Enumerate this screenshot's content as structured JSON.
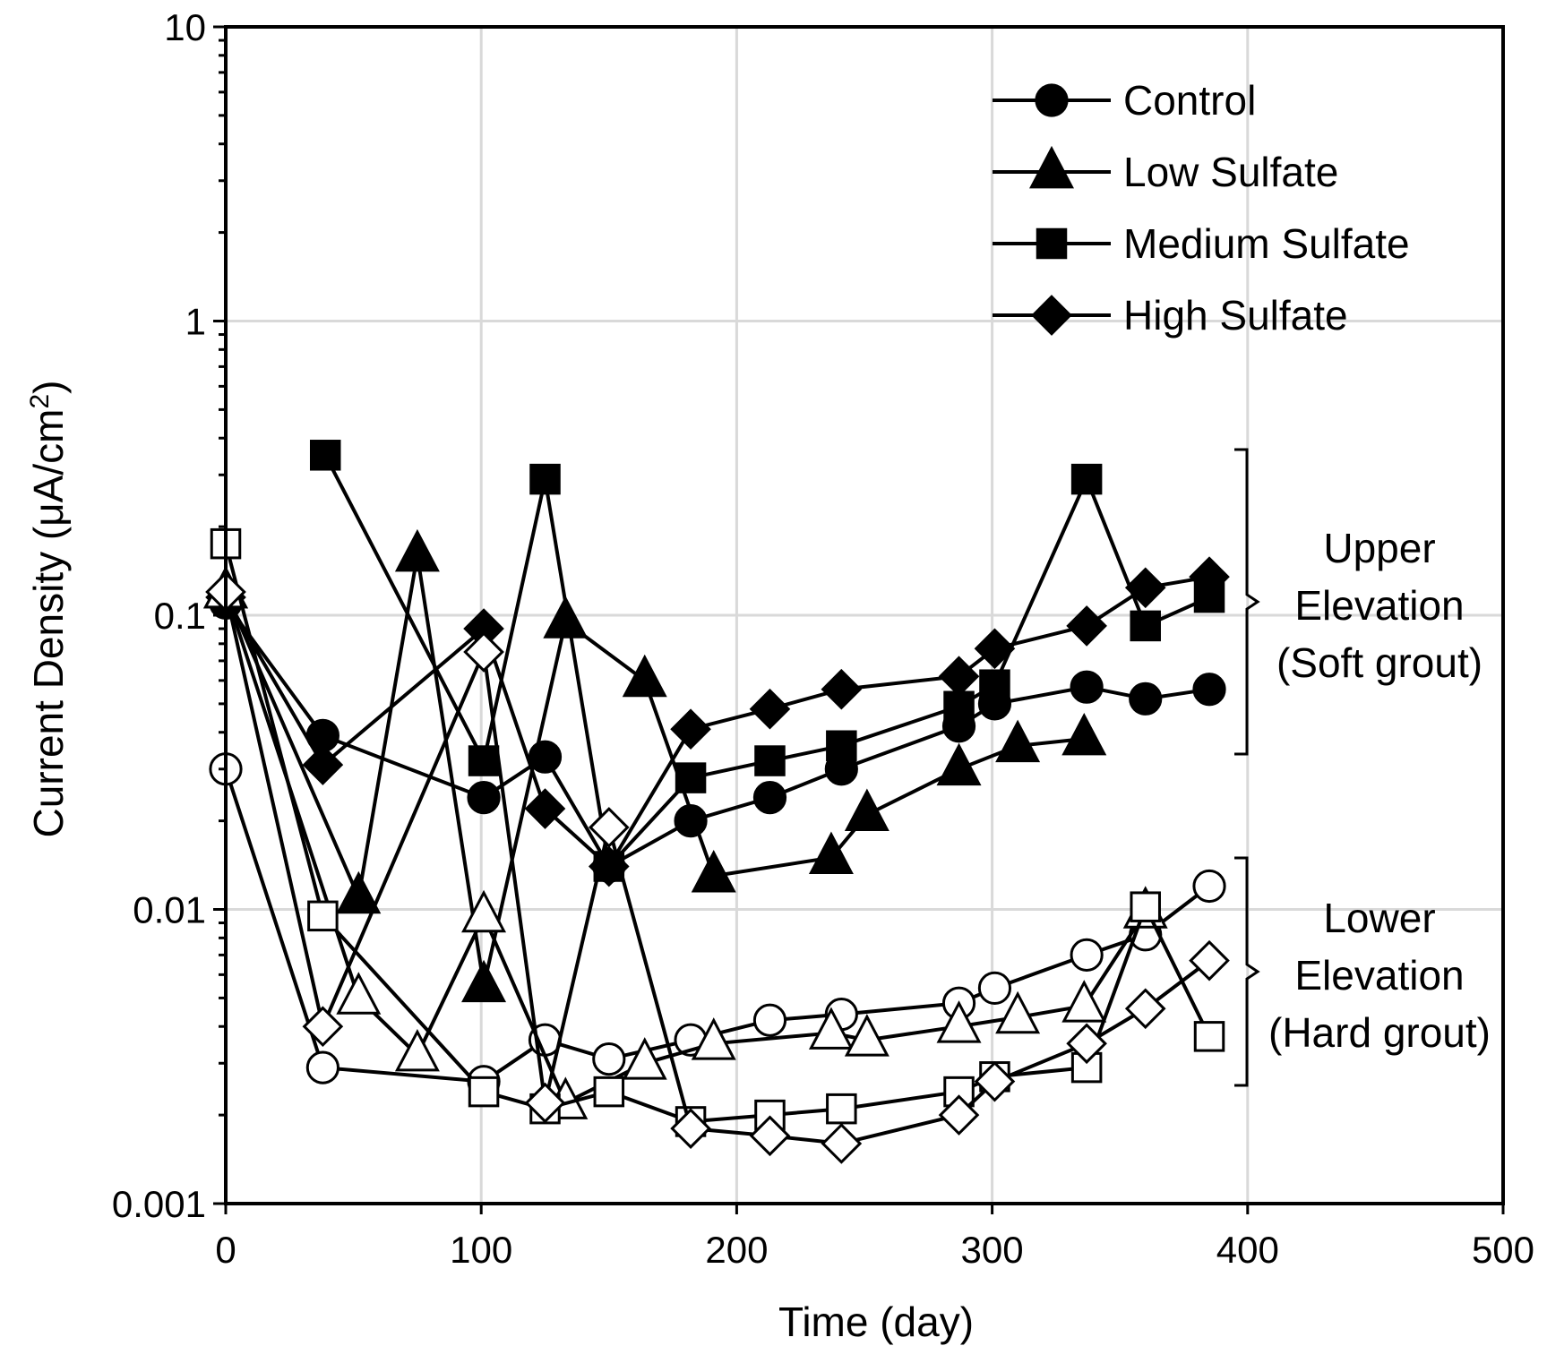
{
  "chart_data": {
    "type": "line",
    "title": "",
    "xlabel": "Time (day)",
    "ylabel": "Current Density (μA/cm²)",
    "ylabel_base": "Current Density (μA/cm",
    "ylabel_sup": "2",
    "ylabel_close": ")",
    "xlim": [
      0,
      500
    ],
    "ylim": [
      0.001,
      10
    ],
    "yscale": "log",
    "grid": true,
    "legend_position": "top-right",
    "x_ticks": [
      "0",
      "100",
      "200",
      "300",
      "400",
      "500"
    ],
    "y_ticks": [
      "0.001",
      "0.01",
      "0.1",
      "1",
      "10"
    ],
    "legend": [
      {
        "label": "Control",
        "marker": "circle"
      },
      {
        "label": "Low Sulfate",
        "marker": "triangle"
      },
      {
        "label": "Medium Sulfate",
        "marker": "square"
      },
      {
        "label": "High Sulfate",
        "marker": "diamond"
      }
    ],
    "annotations": [
      {
        "group": "upper",
        "lines": [
          "Upper",
          "Elevation",
          "(Soft grout)"
        ]
      },
      {
        "group": "lower",
        "lines": [
          "Lower",
          "Elevation",
          "(Hard grout)"
        ]
      }
    ],
    "series": [
      {
        "name": "Control - Upper Elevation (Soft grout)",
        "marker": "circle",
        "filled": true,
        "x": [
          0,
          38,
          101,
          125,
          150,
          182,
          213,
          241,
          287,
          301,
          337,
          360,
          385
        ],
        "y": [
          0.11,
          0.039,
          0.024,
          0.033,
          0.014,
          0.02,
          0.024,
          0.03,
          0.042,
          0.05,
          0.057,
          0.052,
          0.056
        ]
      },
      {
        "name": "Low Sulfate - Upper Elevation (Soft grout)",
        "marker": "triangle",
        "filled": true,
        "x": [
          0,
          52,
          75,
          101,
          133,
          164,
          191,
          237,
          251,
          287,
          310,
          336
        ],
        "y": [
          0.12,
          0.011,
          0.16,
          0.0055,
          0.095,
          0.06,
          0.013,
          0.015,
          0.021,
          0.03,
          0.036,
          0.038
        ]
      },
      {
        "name": "Medium Sulfate - Upper Elevation (Soft grout)",
        "marker": "square",
        "filled": true,
        "x": [
          39,
          101,
          125,
          150,
          182,
          213,
          241,
          287,
          301,
          337,
          360,
          385
        ],
        "y": [
          0.35,
          0.032,
          0.29,
          0.014,
          0.028,
          0.032,
          0.036,
          0.049,
          0.058,
          0.29,
          0.092,
          0.115
        ]
      },
      {
        "name": "High Sulfate - Upper Elevation (Soft grout)",
        "marker": "diamond",
        "filled": true,
        "x": [
          0,
          38,
          101,
          125,
          150,
          182,
          213,
          241,
          287,
          301,
          337,
          360,
          385
        ],
        "y": [
          0.115,
          0.031,
          0.09,
          0.022,
          0.014,
          0.041,
          0.048,
          0.056,
          0.062,
          0.077,
          0.092,
          0.124,
          0.135
        ]
      },
      {
        "name": "Control - Lower Elevation (Hard grout)",
        "marker": "circle",
        "filled": false,
        "x": [
          0,
          38,
          101,
          125,
          150,
          182,
          213,
          241,
          287,
          301,
          337,
          360,
          385
        ],
        "y": [
          0.03,
          0.0029,
          0.0026,
          0.0036,
          0.0031,
          0.0036,
          0.0042,
          0.0044,
          0.0048,
          0.0054,
          0.007,
          0.0082,
          0.012
        ]
      },
      {
        "name": "Low Sulfate - Lower Elevation (Hard grout)",
        "marker": "triangle",
        "filled": false,
        "x": [
          0,
          52,
          75,
          101,
          133,
          164,
          191,
          237,
          251,
          287,
          310,
          336,
          360
        ],
        "y": [
          0.12,
          0.005,
          0.0032,
          0.0095,
          0.0022,
          0.003,
          0.0035,
          0.0038,
          0.0036,
          0.004,
          0.0043,
          0.0047,
          0.0098
        ]
      },
      {
        "name": "Medium Sulfate - Lower Elevation (Hard grout)",
        "marker": "square",
        "filled": false,
        "x": [
          0,
          38,
          101,
          125,
          150,
          182,
          213,
          241,
          287,
          301,
          337,
          360,
          385
        ],
        "y": [
          0.175,
          0.0095,
          0.0024,
          0.0021,
          0.0024,
          0.0019,
          0.002,
          0.0021,
          0.0024,
          0.0027,
          0.0029,
          0.0102,
          0.0037
        ]
      },
      {
        "name": "High Sulfate - Lower Elevation (Hard grout)",
        "marker": "diamond",
        "filled": false,
        "x": [
          0,
          38,
          101,
          125,
          150,
          182,
          213,
          241,
          287,
          301,
          337,
          360,
          385
        ],
        "y": [
          0.12,
          0.004,
          0.075,
          0.0022,
          0.019,
          0.0018,
          0.0017,
          0.0016,
          0.002,
          0.0026,
          0.0035,
          0.0046,
          0.0067
        ]
      }
    ]
  }
}
